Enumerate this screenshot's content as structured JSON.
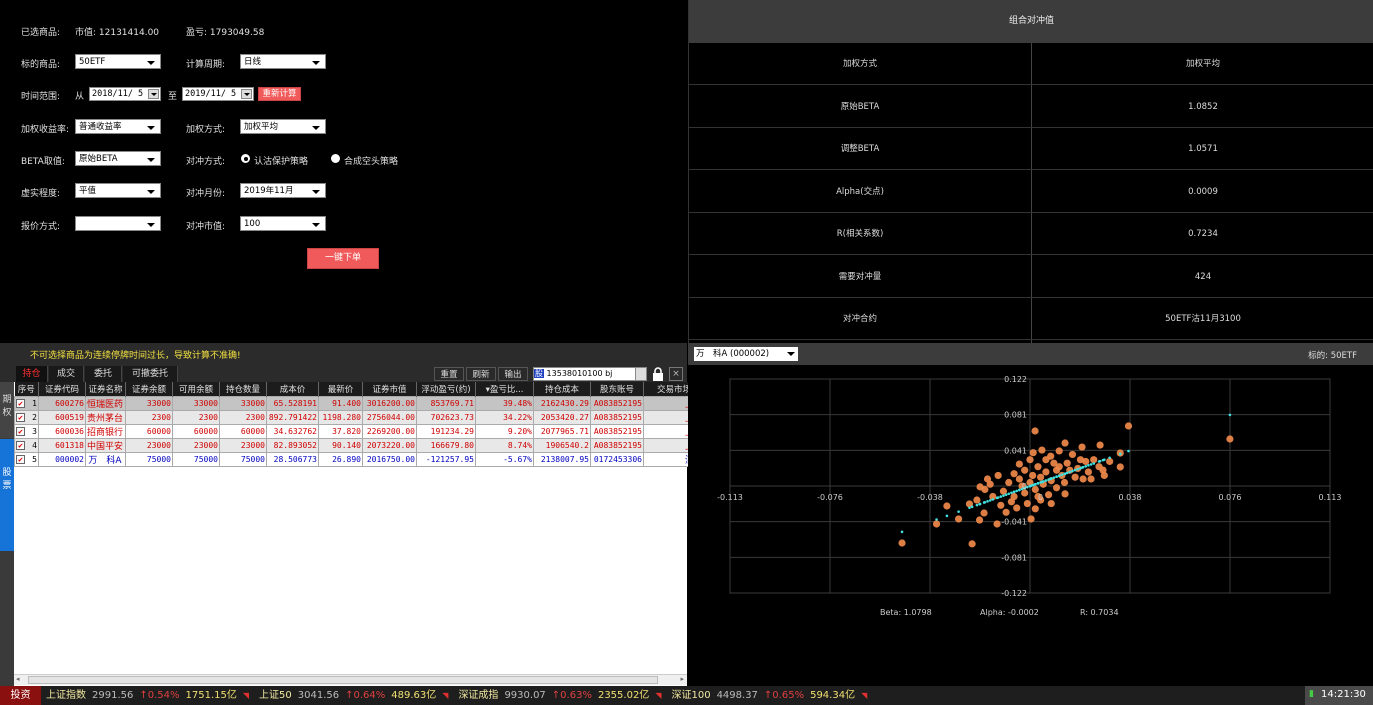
{
  "form": {
    "selected_label": "已选商品:",
    "market_value": "市值: 12131414.00",
    "pnl": "盈亏: 1793049.58",
    "underlying_label": "标的商品:",
    "underlying_value": "50ETF",
    "period_label": "计算周期:",
    "period_value": "日线",
    "range_label": "时间范围:",
    "from_label": "从",
    "from_date": "2018/11/ 5",
    "to_label": "至",
    "to_date": "2019/11/ 5",
    "recalc_button": "重新计算",
    "return_label": "加权收益率:",
    "return_value": "普通收益率",
    "weight_label": "加权方式:",
    "weight_value": "加权平均",
    "beta_label": "BETA取值:",
    "beta_value": "原始BETA",
    "hedge_mode_label": "对冲方式:",
    "hedge_mode_options": [
      "认沽保护策略",
      "合成空头策略"
    ],
    "hedge_mode_selected": 0,
    "moneyness_label": "虚实程度:",
    "moneyness_value": "平值",
    "hedge_month_label": "对冲月份:",
    "hedge_month_value": "2019年11月",
    "quote_label": "报价方式:",
    "quote_value": "",
    "hedge_mv_label": "对冲市值:",
    "hedge_mv_value": "100",
    "order_button": "一键下单"
  },
  "hedge": {
    "title": "组合对冲值",
    "rows": [
      {
        "k": "加权方式",
        "v": "加权平均"
      },
      {
        "k": "原始BETA",
        "v": "1.0852"
      },
      {
        "k": "调整BETA",
        "v": "1.0571"
      },
      {
        "k": "Alpha(交点)",
        "v": "0.0009"
      },
      {
        "k": "R(相关系数)",
        "v": "0.7234"
      },
      {
        "k": "需要对冲量",
        "v": "424"
      },
      {
        "k": "对冲合约",
        "v": "50ETF沽11月3100"
      }
    ]
  },
  "positions": {
    "warning": "不可选择商品为连续停牌时间过长，导致计算不准确!",
    "side_tabs": [
      "期权",
      "股票"
    ],
    "tabs": [
      "持仓",
      "成交",
      "委托",
      "可撤委托"
    ],
    "toolbar": {
      "reset": "重置",
      "refresh": "刷新",
      "export": "输出",
      "account_badge": "股",
      "account": "13538010100 bj"
    },
    "columns": [
      "序号",
      "证券代码",
      "证券名称",
      "证券余额",
      "可用余额",
      "持仓数量",
      "成本价",
      "最新价",
      "证券市值",
      "浮动盈亏(约)",
      "▾盈亏比...",
      "持仓成本",
      "股东账号",
      "交易市场"
    ],
    "rows": [
      [
        "1",
        "600276",
        "恒瑞医药",
        "33000",
        "33000",
        "33000",
        "65.528191",
        "91.400",
        "3016200.00",
        "853769.71",
        "39.48%",
        "2162430.29",
        "A083852195",
        "上海"
      ],
      [
        "2",
        "600519",
        "贵州茅台",
        "2300",
        "2300",
        "2300",
        "892.791422",
        "1198.280",
        "2756044.00",
        "702623.73",
        "34.22%",
        "2053420.27",
        "A083852195",
        "上海"
      ],
      [
        "3",
        "600036",
        "招商银行",
        "60000",
        "60000",
        "60000",
        "34.632762",
        "37.820",
        "2269200.00",
        "191234.29",
        "9.20%",
        "2077965.71",
        "A083852195",
        "上海"
      ],
      [
        "4",
        "601318",
        "中国平安",
        "23000",
        "23000",
        "23000",
        "82.893052",
        "90.140",
        "2073220.00",
        "166679.80",
        "8.74%",
        "1906540.2",
        "A083852195",
        "上海"
      ],
      [
        "5",
        "000002",
        "万　科A",
        "75000",
        "75000",
        "75000",
        "28.506773",
        "26.890",
        "2016750.00",
        "-121257.95",
        "-5.67%",
        "2138007.95",
        "0172453306",
        "深圳"
      ]
    ],
    "row_colors": [
      "#d00000",
      "#d00000",
      "#d00000",
      "#d00000",
      "#0000c0"
    ]
  },
  "scatter_panel": {
    "stock_select": "万　科A (000002)",
    "underlying": "标的: 50ETF"
  },
  "chart_data": {
    "type": "scatter",
    "xlim": [
      -0.113,
      0.113
    ],
    "ylim": [
      -0.122,
      0.122
    ],
    "xticks": [
      "-0.113",
      "-0.076",
      "-0.038",
      "0",
      "0.038",
      "0.076",
      "0.113"
    ],
    "yticks": [
      "0.122",
      "0.081",
      "0.041",
      "0",
      "-0.041",
      "-0.081",
      "-0.122"
    ],
    "grid": true,
    "point_color": "#f0894a",
    "fit_color": "#40e0e0",
    "beta": 1.0798,
    "alpha": -0.0002,
    "stats": {
      "beta": "Beta: 1.0798",
      "alpha": "Alpha: -0.0002",
      "r": "R: 0.7034"
    },
    "points": [
      [
        0.0753,
        0.0536
      ],
      [
        0.0371,
        0.0684
      ],
      [
        0.0019,
        0.0627
      ],
      [
        -0.0482,
        -0.065
      ],
      [
        -0.0218,
        -0.066
      ],
      [
        -0.0352,
        -0.0433
      ],
      [
        -0.0313,
        -0.0228
      ],
      [
        -0.0269,
        -0.0376
      ],
      [
        -0.0124,
        -0.0433
      ],
      [
        0.0004,
        -0.0376
      ],
      [
        0.0132,
        0.049
      ],
      [
        0.0264,
        0.0467
      ],
      [
        0.0196,
        0.0444
      ],
      [
        0.034,
        0.0376
      ],
      [
        0.034,
        0.0217
      ],
      [
        0.0275,
        0.0182
      ],
      [
        0.0132,
        -0.009
      ],
      [
        -0.0188,
        -0.001
      ],
      [
        -0.0228,
        -0.0205
      ],
      [
        -0.0173,
        -0.0308
      ],
      [
        -0.019,
        -0.0388
      ],
      [
        0.0045,
        0.041
      ],
      [
        0.0012,
        0.038
      ],
      [
        0.0078,
        0.034
      ],
      [
        0.011,
        0.04
      ],
      [
        0.016,
        0.036
      ],
      [
        0.021,
        0.028
      ],
      [
        0.024,
        0.03
      ],
      [
        0.018,
        0.02
      ],
      [
        0.009,
        0.026
      ],
      [
        0.003,
        0.022
      ],
      [
        -0.002,
        0.018
      ],
      [
        0.006,
        0.016
      ],
      [
        0.012,
        0.012
      ],
      [
        0.015,
        0.018
      ],
      [
        0.02,
        0.008
      ],
      [
        0.022,
        0.016
      ],
      [
        0.026,
        0.022
      ],
      [
        -0.004,
        0.008
      ],
      [
        -0.008,
        0.004
      ],
      [
        -0.012,
        0.012
      ],
      [
        -0.015,
        0.002
      ],
      [
        -0.01,
        -0.006
      ],
      [
        -0.006,
        -0.012
      ],
      [
        -0.002,
        -0.008
      ],
      [
        0.002,
        -0.004
      ],
      [
        0.005,
        0.002
      ],
      [
        0.008,
        0.006
      ],
      [
        0.0,
        0.004
      ],
      [
        -0.003,
        0.0
      ],
      [
        -0.007,
        -0.018
      ],
      [
        -0.011,
        -0.022
      ],
      [
        -0.014,
        -0.012
      ],
      [
        -0.017,
        -0.004
      ],
      [
        0.004,
        -0.016
      ],
      [
        0.007,
        -0.01
      ],
      [
        0.01,
        -0.002
      ],
      [
        0.013,
        0.004
      ],
      [
        0.017,
        0.01
      ],
      [
        -0.001,
        -0.02
      ],
      [
        -0.005,
        -0.025
      ],
      [
        0.002,
        -0.026
      ],
      [
        -0.009,
        -0.03
      ],
      [
        0.006,
        0.03
      ],
      [
        0.0,
        0.03
      ],
      [
        -0.004,
        0.025
      ],
      [
        0.01,
        0.018
      ],
      [
        0.014,
        0.026
      ],
      [
        0.019,
        0.03
      ],
      [
        0.023,
        0.008
      ],
      [
        0.03,
        0.028
      ],
      [
        0.028,
        0.012
      ],
      [
        -0.02,
        -0.016
      ],
      [
        -0.016,
        0.008
      ],
      [
        0.001,
        0.012
      ],
      [
        0.004,
        0.01
      ],
      [
        -0.006,
        0.014
      ],
      [
        0.008,
        -0.02
      ],
      [
        0.011,
        0.022
      ],
      [
        0.003,
        -0.012
      ]
    ]
  },
  "ticker": {
    "logo": "投资",
    "items": [
      {
        "name": "上证指数",
        "price": "2991.56",
        "chg": "↑0.54%",
        "amt": "1751.15亿"
      },
      {
        "name": "上证50",
        "price": "3041.56",
        "chg": "↑0.64%",
        "amt": "489.63亿"
      },
      {
        "name": "深证成指",
        "price": "9930.07",
        "chg": "↑0.63%",
        "amt": "2355.02亿"
      },
      {
        "name": "深证100",
        "price": "4498.37",
        "chg": "↑0.65%",
        "amt": "594.34亿"
      }
    ],
    "time": "14:21:30"
  }
}
